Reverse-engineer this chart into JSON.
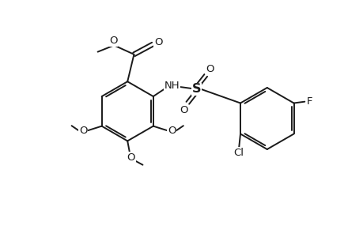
{
  "bg_color": "#ffffff",
  "line_color": "#1a1a1a",
  "line_width": 1.4,
  "font_size": 9.5,
  "fig_width": 4.6,
  "fig_height": 3.0,
  "dpi": 100,
  "xlim": [
    -0.5,
    9.5
  ],
  "ylim": [
    0.0,
    6.0
  ]
}
